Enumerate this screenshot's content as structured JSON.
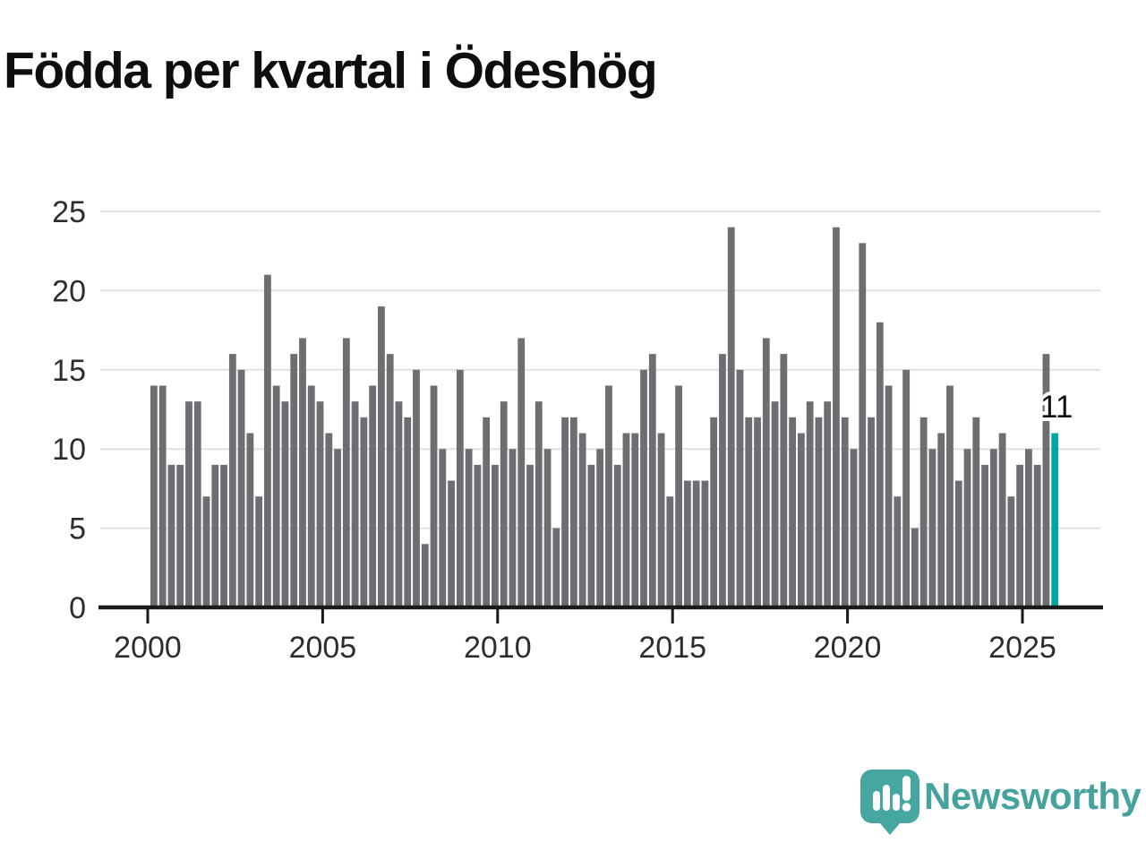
{
  "chart_data": {
    "type": "bar",
    "title": "Födda per kvartal i Ödeshög",
    "x_start_year": 2000,
    "frequency": "quarterly",
    "values": [
      14,
      14,
      9,
      9,
      13,
      13,
      7,
      9,
      9,
      16,
      15,
      11,
      7,
      21,
      14,
      13,
      16,
      17,
      14,
      13,
      11,
      10,
      17,
      13,
      12,
      14,
      19,
      16,
      13,
      12,
      15,
      4,
      14,
      10,
      8,
      15,
      10,
      9,
      12,
      9,
      13,
      10,
      17,
      9,
      13,
      10,
      5,
      12,
      12,
      11,
      9,
      10,
      14,
      9,
      11,
      11,
      15,
      16,
      11,
      7,
      14,
      8,
      8,
      8,
      12,
      16,
      24,
      15,
      12,
      12,
      17,
      13,
      16,
      12,
      11,
      13,
      12,
      13,
      24,
      12,
      10,
      23,
      12,
      18,
      14,
      7,
      15,
      5,
      12,
      10,
      11,
      14,
      8,
      10,
      12,
      9,
      10,
      11,
      7,
      9,
      10,
      9,
      16,
      11
    ],
    "x_tick_years": [
      2000,
      2005,
      2010,
      2015,
      2020,
      2025
    ],
    "y_ticks": [
      0,
      5,
      10,
      15,
      20,
      25
    ],
    "ylim": [
      0,
      25
    ],
    "grid": "horizontal",
    "legend": "none",
    "bar_color": "#6d6d72",
    "highlight_last_bar_color": "#00a79e",
    "annotation": {
      "label": "11",
      "target": "last-bar"
    },
    "axis_color": "#1a1a1a",
    "grid_color": "#e1e1e1",
    "tick_label_color": "#2d2d2d"
  },
  "branding": {
    "wordmark": "Newsworthy",
    "brand_color": "#45a29c"
  }
}
